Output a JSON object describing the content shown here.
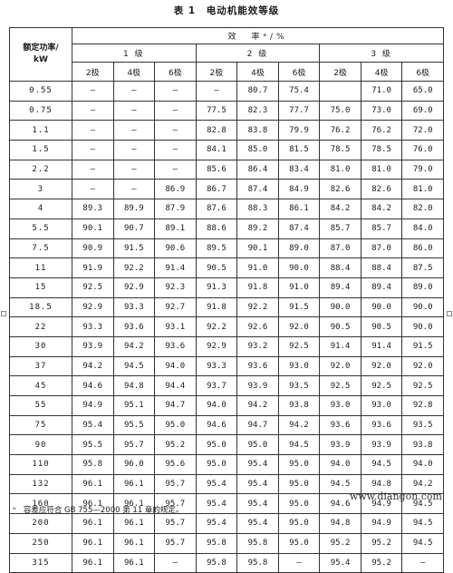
{
  "title": "表 1　电动机能效等级",
  "table": {
    "rated_power_label": "额定功率/\nkW",
    "efficiency_label": "效　率ᵃ/%",
    "grades": [
      "1 级",
      "2 级",
      "3 级"
    ],
    "poles": [
      "2极",
      "4极",
      "6极",
      "2极",
      "4极",
      "6极",
      "2极",
      "4极",
      "6极"
    ],
    "rows": [
      [
        "0.55",
        "—",
        "—",
        "—",
        "—",
        "80.7",
        "75.4",
        "",
        "71.0",
        "65.0"
      ],
      [
        "0.75",
        "—",
        "—",
        "—",
        "77.5",
        "82.3",
        "77.7",
        "75.0",
        "73.0",
        "69.0"
      ],
      [
        "1.1",
        "—",
        "—",
        "—",
        "82.8",
        "83.8",
        "79.9",
        "76.2",
        "76.2",
        "72.0"
      ],
      [
        "1.5",
        "—",
        "—",
        "—",
        "84.1",
        "85.0",
        "81.5",
        "78.5",
        "78.5",
        "76.0"
      ],
      [
        "2.2",
        "—",
        "—",
        "—",
        "85.6",
        "86.4",
        "83.4",
        "81.0",
        "81.0",
        "79.0"
      ],
      [
        "3",
        "—",
        "—",
        "86.9",
        "86.7",
        "87.4",
        "84.9",
        "82.6",
        "82.6",
        "81.0"
      ],
      [
        "4",
        "89.3",
        "89.9",
        "87.9",
        "87.6",
        "88.3",
        "86.1",
        "84.2",
        "84.2",
        "82.0"
      ],
      [
        "5.5",
        "90.1",
        "90.7",
        "89.1",
        "88.6",
        "89.2",
        "87.4",
        "85.7",
        "85.7",
        "84.0"
      ],
      [
        "7.5",
        "90.9",
        "91.5",
        "90.6",
        "89.5",
        "90.1",
        "89.0",
        "87.0",
        "87.0",
        "86.0"
      ],
      [
        "11",
        "91.9",
        "92.2",
        "91.4",
        "90.5",
        "91.0",
        "90.0",
        "88.4",
        "88.4",
        "87.5"
      ],
      [
        "15",
        "92.5",
        "92.9",
        "92.3",
        "91.3",
        "91.8",
        "91.0",
        "89.4",
        "89.4",
        "89.0"
      ],
      [
        "18.5",
        "92.9",
        "93.3",
        "92.7",
        "91.8",
        "92.2",
        "91.5",
        "90.0",
        "90.0",
        "90.0"
      ],
      [
        "22",
        "93.3",
        "93.6",
        "93.1",
        "92.2",
        "92.6",
        "92.0",
        "90.5",
        "90.5",
        "90.0"
      ],
      [
        "30",
        "93.9",
        "94.2",
        "93.6",
        "92.9",
        "93.2",
        "92.5",
        "91.4",
        "91.4",
        "91.5"
      ],
      [
        "37",
        "94.2",
        "94.5",
        "94.0",
        "93.3",
        "93.6",
        "93.0",
        "92.0",
        "92.0",
        "92.0"
      ],
      [
        "45",
        "94.6",
        "94.8",
        "94.4",
        "93.7",
        "93.9",
        "93.5",
        "92.5",
        "92.5",
        "92.5"
      ],
      [
        "55",
        "94.9",
        "95.1",
        "94.7",
        "94.0",
        "94.2",
        "93.8",
        "93.0",
        "93.0",
        "92.8"
      ],
      [
        "75",
        "95.4",
        "95.5",
        "95.0",
        "94.6",
        "94.7",
        "94.2",
        "93.6",
        "93.6",
        "93.5"
      ],
      [
        "90",
        "95.5",
        "95.7",
        "95.2",
        "95.0",
        "95.0",
        "94.5",
        "93.9",
        "93.9",
        "93.8"
      ],
      [
        "110",
        "95.8",
        "96.0",
        "95.6",
        "95.0",
        "95.4",
        "95.0",
        "94.0",
        "94.5",
        "94.0"
      ],
      [
        "132",
        "96.1",
        "96.1",
        "95.7",
        "95.4",
        "95.4",
        "95.0",
        "94.5",
        "94.8",
        "94.2"
      ],
      [
        "160",
        "96.1",
        "96.1",
        "95.7",
        "95.4",
        "95.4",
        "95.0",
        "94.6",
        "94.9",
        "94.5"
      ],
      [
        "200",
        "96.1",
        "96.1",
        "95.7",
        "95.4",
        "95.4",
        "95.0",
        "94.8",
        "94.9",
        "94.5"
      ],
      [
        "250",
        "96.1",
        "96.1",
        "95.7",
        "95.8",
        "95.8",
        "95.0",
        "95.2",
        "95.2",
        "94.5"
      ],
      [
        "315",
        "96.1",
        "96.1",
        "—",
        "95.8",
        "95.8",
        "—",
        "95.4",
        "95.2",
        "—"
      ]
    ]
  },
  "footnote": "ᵃ　容差应符合 GB 755—2000 第 11 章的规定。",
  "watermark": "www.diangon.com"
}
